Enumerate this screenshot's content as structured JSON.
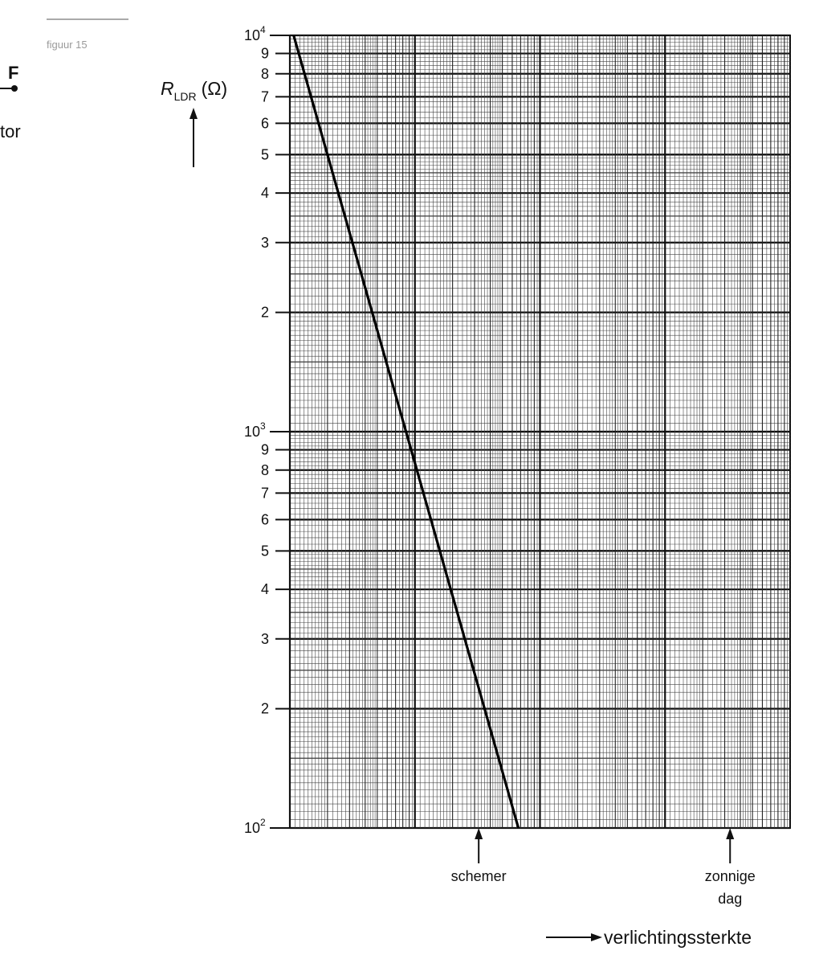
{
  "figure_label": "figuur 15",
  "side_fragment": {
    "letter": "F",
    "word": "tor"
  },
  "chart_data": {
    "type": "line",
    "title": "",
    "ylabel": "R",
    "ylabel_subscript": "LDR",
    "ylabel_unit": "(Ω)",
    "xlabel": "verlichtingssterkte",
    "y_scale": "log",
    "ylim": [
      100,
      10000
    ],
    "y_major_ticks": [
      {
        "value": 100,
        "base": "10",
        "exp": "2"
      },
      {
        "value": 1000,
        "base": "10",
        "exp": "3"
      },
      {
        "value": 10000,
        "base": "10",
        "exp": "4"
      }
    ],
    "y_minor_tick_labels": [
      "2",
      "3",
      "4",
      "5",
      "6",
      "7",
      "8",
      "9"
    ],
    "x_scale": "log",
    "x_decades": 4,
    "x_tick_labels": false,
    "grid": true,
    "series": [
      {
        "points": [
          [
            0.03,
            10000
          ],
          [
            1.827,
            100
          ]
        ]
      }
    ],
    "annotations": [
      {
        "label": [
          "schemer"
        ],
        "x_decades": 1.51
      },
      {
        "label": [
          "zonnige",
          "dag"
        ],
        "x_decades": 3.52
      }
    ]
  }
}
